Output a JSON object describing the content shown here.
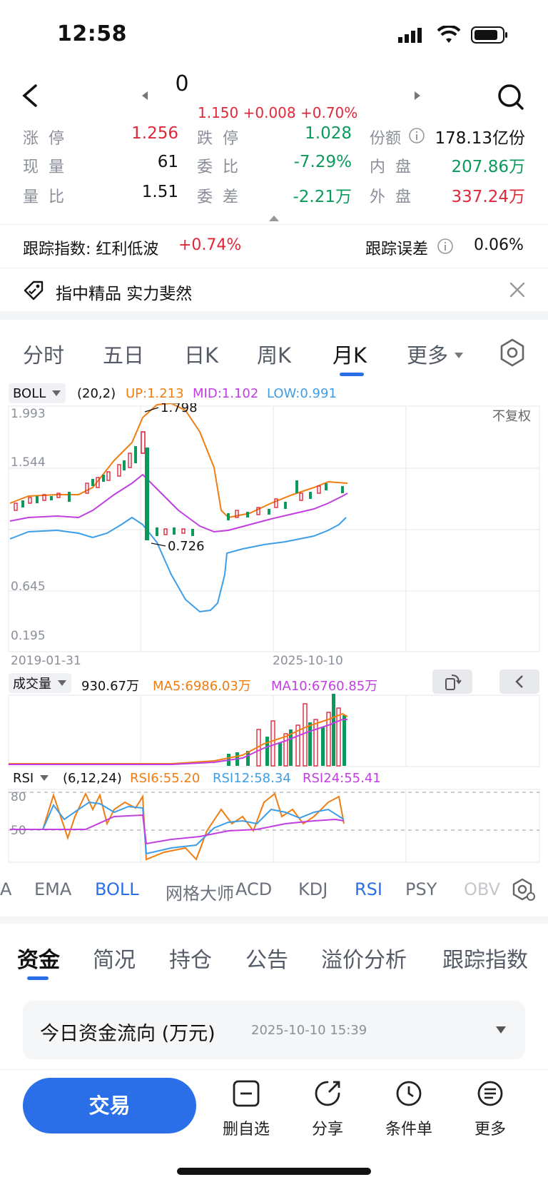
{
  "status_bar": {
    "time": "12:58"
  },
  "header": {
    "title": "0",
    "price_line": "1.150 +0.008 +0.70%"
  },
  "quote": {
    "rows": [
      [
        {
          "label": "涨停",
          "value": "1.256",
          "color": "red"
        },
        {
          "label": "跌停",
          "value": "1.028",
          "color": "green"
        },
        {
          "label": "份额",
          "value": "178.13亿份",
          "color": "black"
        }
      ],
      [
        {
          "label": "现量",
          "value": "61",
          "color": "black"
        },
        {
          "label": "委比",
          "value": "-7.29%",
          "color": "green"
        },
        {
          "label": "内盘",
          "value": "207.86万",
          "color": "green"
        }
      ],
      [
        {
          "label": "量比",
          "value": "1.51",
          "color": "black"
        },
        {
          "label": "委差",
          "value": "-2.21万",
          "color": "green"
        },
        {
          "label": "外盘",
          "value": "337.24万",
          "color": "red"
        }
      ]
    ]
  },
  "tracking": {
    "index_label": "跟踪指数: 红利低波",
    "index_change": "+0.74%",
    "error_label": "跟踪误差",
    "error_value": "0.06%"
  },
  "banner": {
    "text": "指中精品 实力斐然"
  },
  "chart_tabs": {
    "items": [
      "分时",
      "五日",
      "日K",
      "周K",
      "月K",
      "更多"
    ],
    "active": "月K"
  },
  "boll": {
    "name": "BOLL",
    "params": "(20,2)",
    "up": "UP:1.213",
    "mid": "MID:1.102",
    "low": "LOW:0.991",
    "fq": "不复权"
  },
  "volume": {
    "name": "成交量",
    "value": "930.67万",
    "ma5": "MA5:6986.03万",
    "ma10": "MA10:6760.85万"
  },
  "rsi": {
    "name": "RSI",
    "params": "(6,12,24)",
    "rsi6": "RSI6:55.20",
    "rsi12": "RSI12:58.34",
    "rsi24": "RSI24:55.41"
  },
  "indicator_bar": {
    "items": [
      "A",
      "EMA",
      "BOLL",
      "网格大师",
      "ACD",
      "KDJ",
      "RSI",
      "PSY",
      "OBV"
    ]
  },
  "sub_tabs": {
    "items": [
      "资金",
      "简况",
      "持仓",
      "公告",
      "溢价分析",
      "跟踪指数"
    ],
    "active": "资金"
  },
  "fund_flow": {
    "title": "今日资金流向 (万元)",
    "time": "2025-10-10 15:39"
  },
  "bottom_bar": {
    "trade": "交易",
    "items": [
      "删自选",
      "分享",
      "条件单",
      "更多"
    ]
  },
  "colors": {
    "up": "#e0283a",
    "down": "#0c9a5c",
    "accent": "#2b6fe8",
    "mid": "#c13fe0",
    "upper": "#f07d12",
    "lower": "#3d9ee8"
  },
  "chart_data": {
    "type": "candlestick",
    "x_start": "2019-01-31",
    "x_end": "2025-10-10",
    "y_ticks": [
      1.993,
      1.544,
      0.645,
      0.195
    ],
    "high_label": "1.798",
    "low_label": "0.726",
    "rsi_ticks": [
      80,
      50
    ]
  }
}
